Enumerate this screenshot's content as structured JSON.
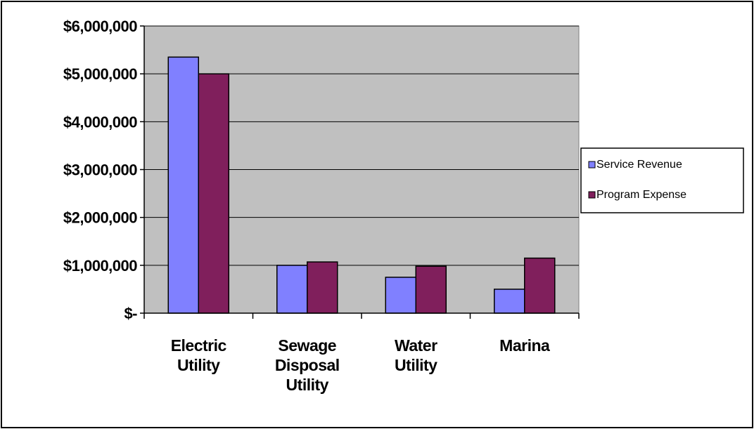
{
  "chart_data": {
    "type": "bar",
    "categories": [
      [
        "Electric",
        "Utility"
      ],
      [
        "Sewage",
        "Disposal",
        "Utility"
      ],
      [
        "Water",
        "Utility"
      ],
      [
        "Marina"
      ]
    ],
    "series": [
      {
        "name": "Service Revenue",
        "color": "#8080ff",
        "values": [
          5350000,
          1000000,
          750000,
          500000
        ]
      },
      {
        "name": "Program Expense",
        "color": "#801f5c",
        "values": [
          5000000,
          1070000,
          980000,
          1150000
        ]
      }
    ],
    "ylim": [
      0,
      6000000
    ],
    "yticks": [
      {
        "value": 0,
        "label": "$-"
      },
      {
        "value": 1000000,
        "label": "$1,000,000"
      },
      {
        "value": 2000000,
        "label": "$2,000,000"
      },
      {
        "value": 3000000,
        "label": "$3,000,000"
      },
      {
        "value": 4000000,
        "label": "$4,000,000"
      },
      {
        "value": 5000000,
        "label": "$5,000,000"
      },
      {
        "value": 6000000,
        "label": "$6,000,000"
      }
    ],
    "grid": true,
    "plot_background": "#c0c0c0",
    "legend_position": "right"
  }
}
